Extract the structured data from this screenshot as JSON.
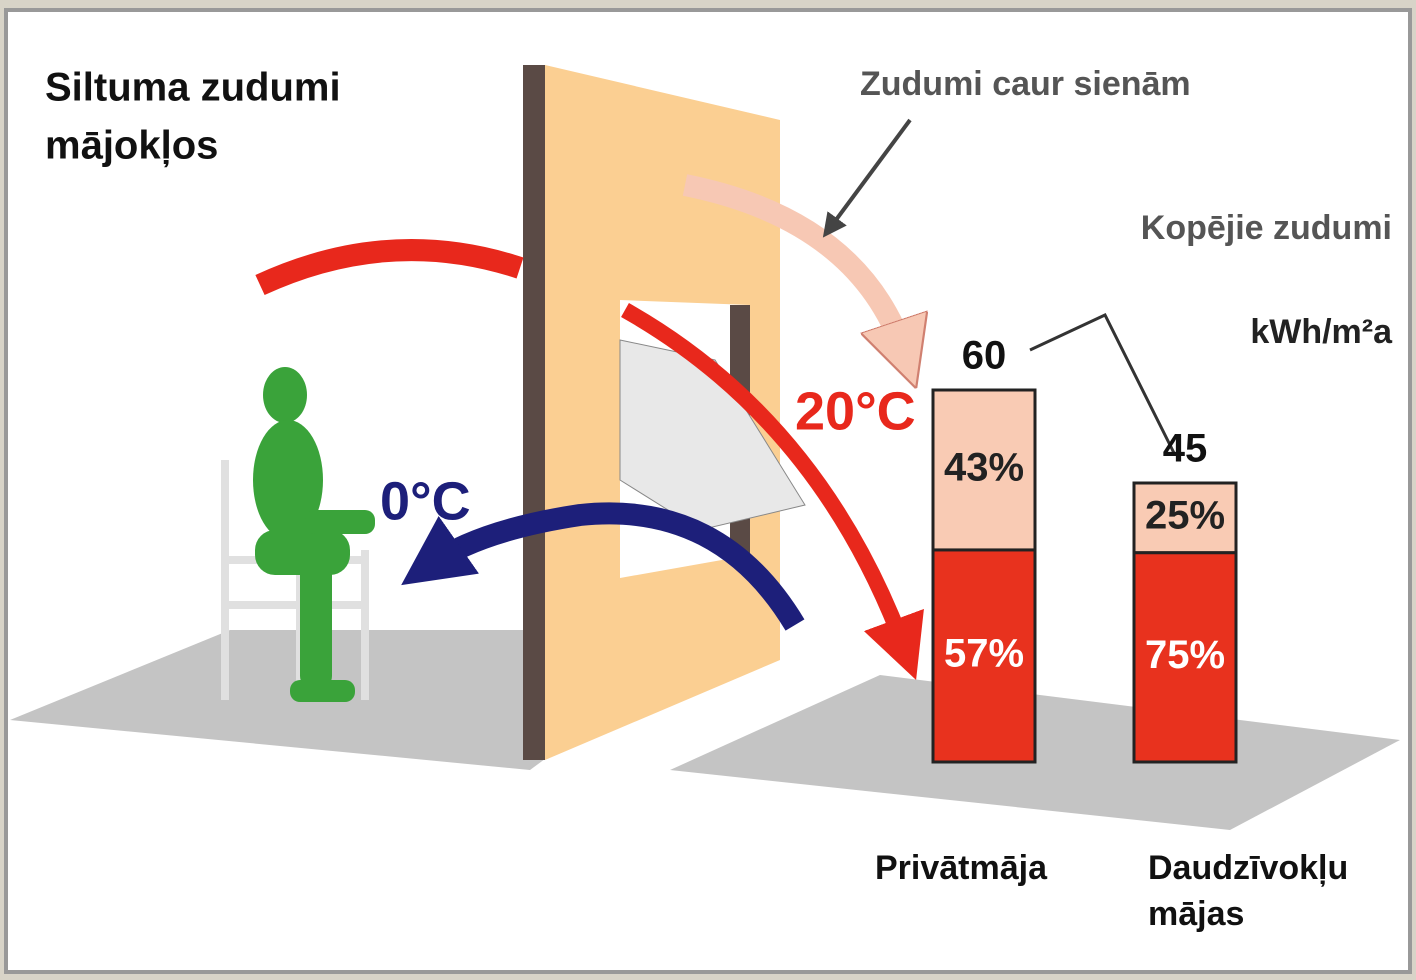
{
  "title_lines": [
    "Siltuma zudumi",
    "mājokļos"
  ],
  "annotations": {
    "walls": "Zudumi caur sienām",
    "total": "Kopējie zudumi",
    "unit": "kWh/m²a",
    "inside": "20°C",
    "outside": "0°C"
  },
  "bars": [
    {
      "label_lines": [
        "Privātmāja"
      ],
      "total": 60,
      "values": [
        43,
        57
      ],
      "value_labels": [
        "43%",
        "57%"
      ]
    },
    {
      "label_lines": [
        "Daudzīvokļu",
        "mājas"
      ],
      "total": 45,
      "values": [
        25,
        75
      ],
      "value_labels": [
        "25%",
        "75%"
      ]
    }
  ]
}
